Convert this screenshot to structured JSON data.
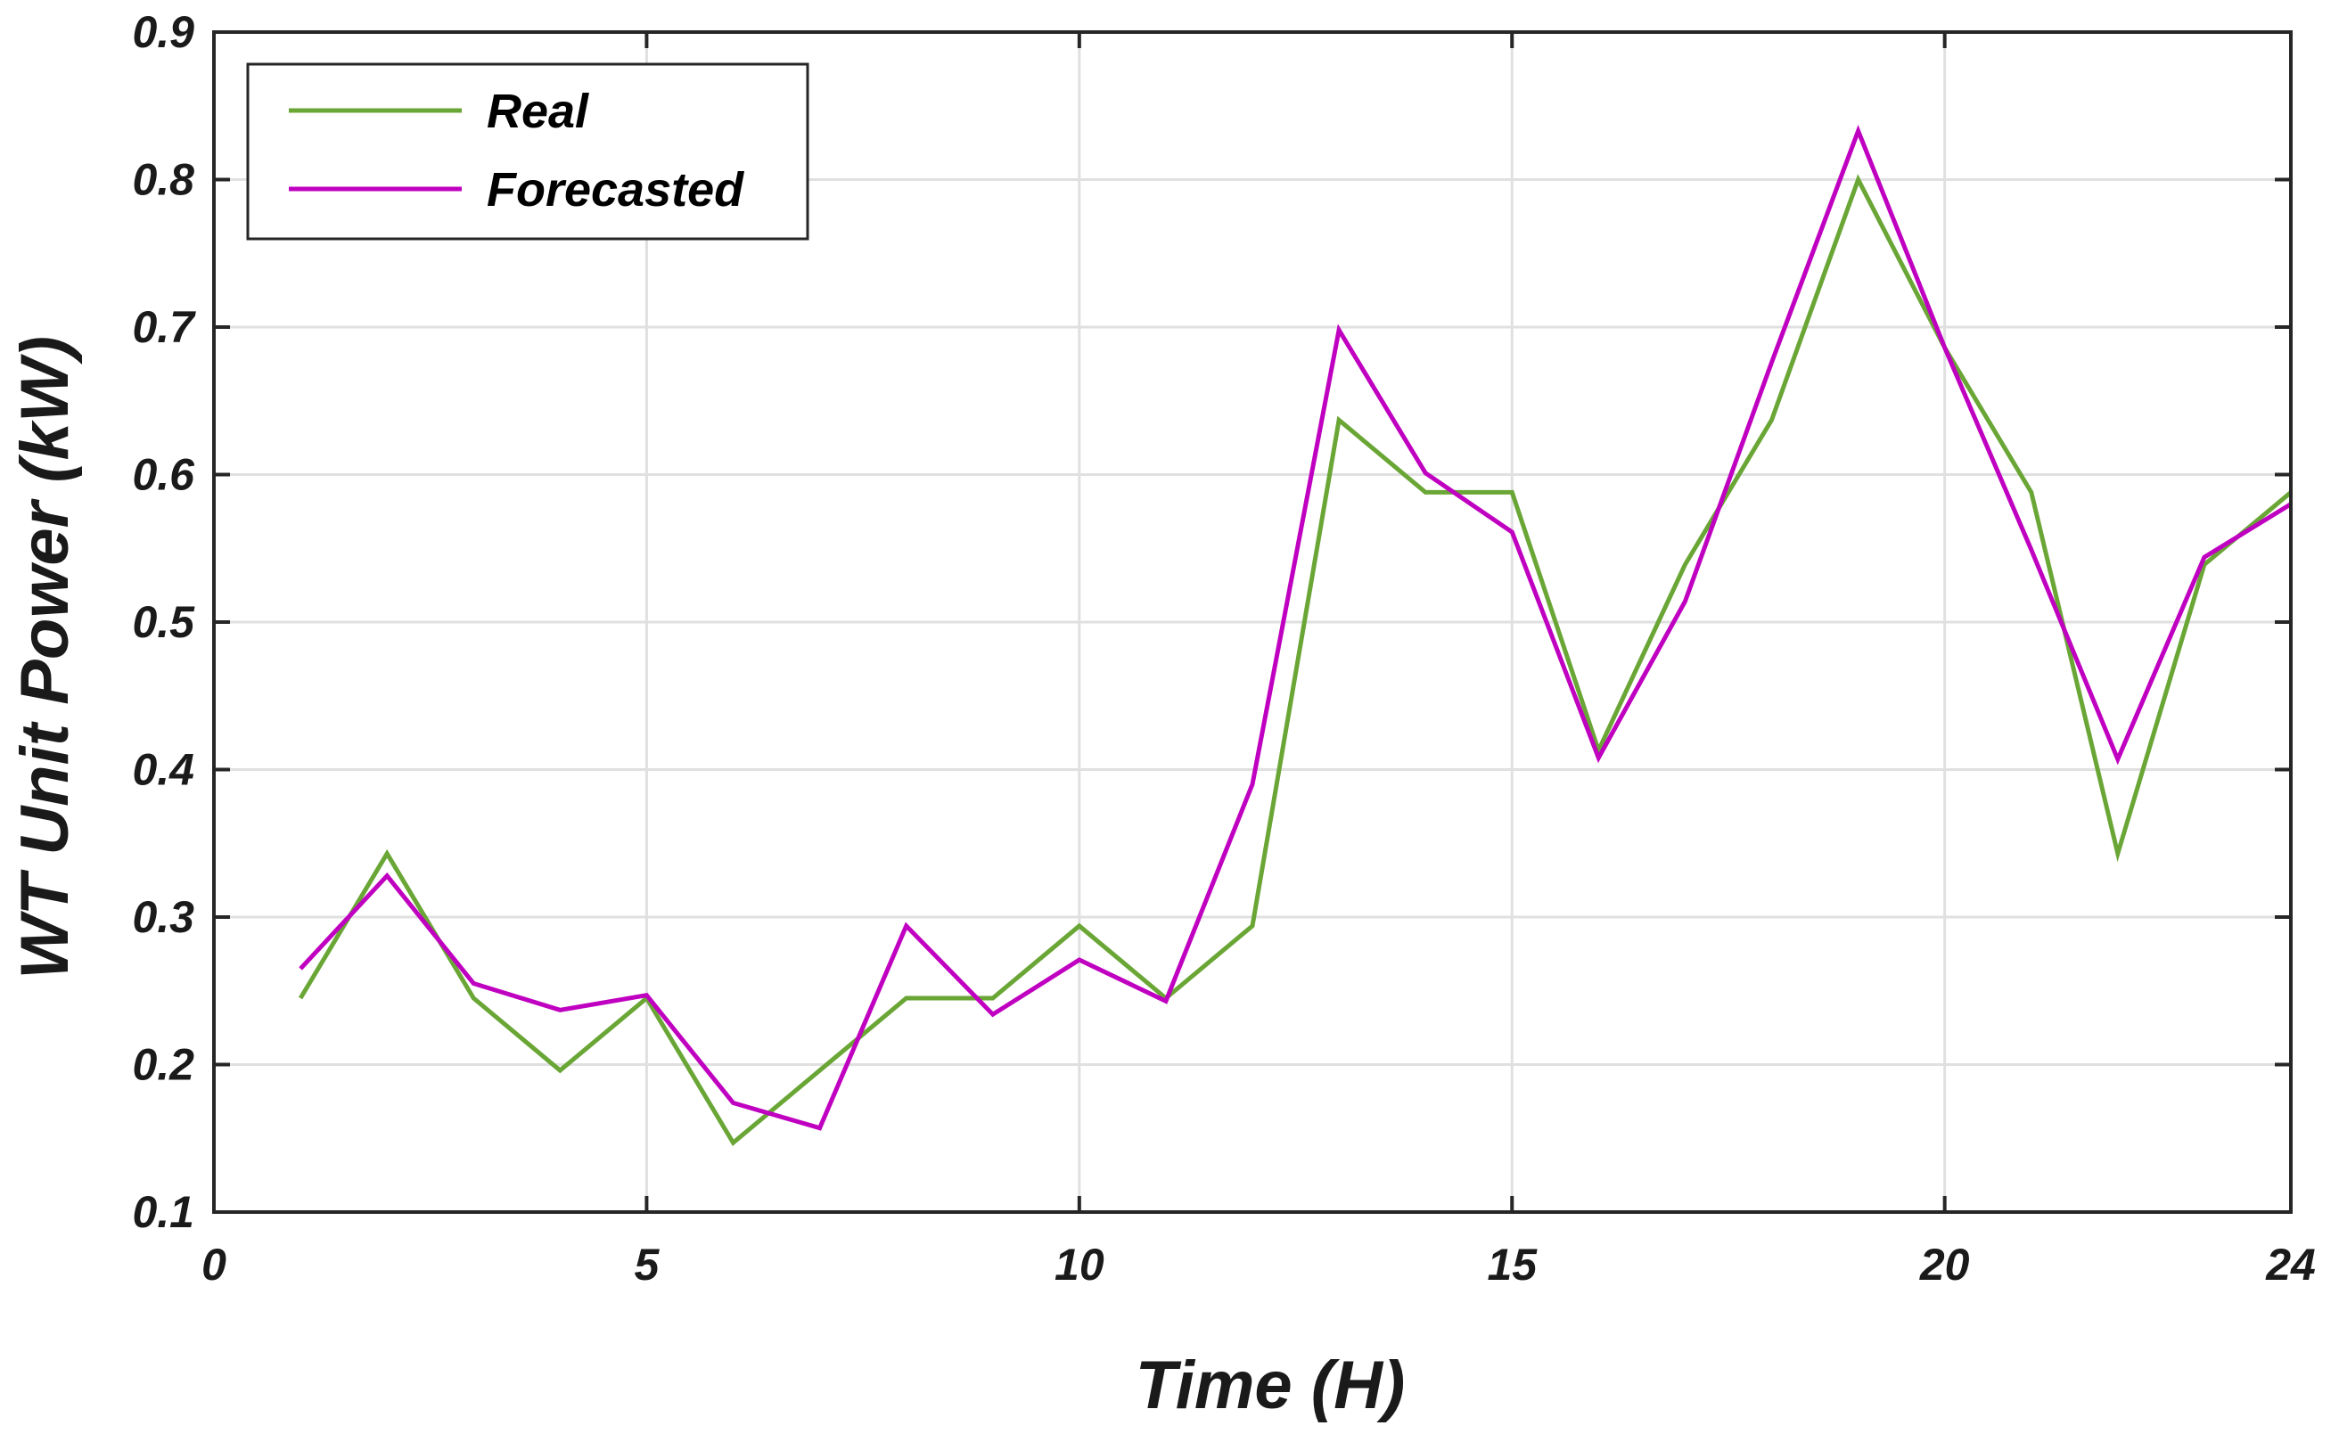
{
  "chart_data": {
    "type": "line",
    "title": "",
    "xlabel": "Time (H)",
    "ylabel": "WT Unit Power (kW)",
    "xlim": [
      0,
      24
    ],
    "ylim": [
      0.1,
      0.9
    ],
    "xticks": [
      0,
      5,
      10,
      15,
      20,
      24
    ],
    "yticks": [
      0.1,
      0.2,
      0.3,
      0.4,
      0.5,
      0.6,
      0.7,
      0.8,
      0.9
    ],
    "ytick_labels": [
      "0.1",
      "0.2",
      "0.3",
      "0.4",
      "0.5",
      "0.6",
      "0.7",
      "0.8",
      "0.9"
    ],
    "grid": true,
    "legend_position": "top-left",
    "x": [
      1,
      2,
      3,
      4,
      5,
      6,
      7,
      8,
      9,
      10,
      11,
      12,
      13,
      14,
      15,
      16,
      17,
      18,
      19,
      20,
      21,
      22,
      23,
      24
    ],
    "series": [
      {
        "name": "Real",
        "color": "#6aa636",
        "values": [
          0.245,
          0.343,
          0.245,
          0.196,
          0.245,
          0.147,
          0.196,
          0.245,
          0.245,
          0.294,
          0.245,
          0.294,
          0.637,
          0.588,
          0.588,
          0.413,
          0.539,
          0.637,
          0.8,
          0.686,
          0.588,
          0.343,
          0.539,
          0.588
        ]
      },
      {
        "name": "Forecasted",
        "color": "#c000c0",
        "values": [
          0.265,
          0.328,
          0.255,
          0.237,
          0.247,
          0.174,
          0.157,
          0.294,
          0.234,
          0.271,
          0.243,
          0.39,
          0.698,
          0.601,
          0.561,
          0.408,
          0.514,
          0.676,
          0.833,
          0.686,
          0.549,
          0.407,
          0.544,
          0.58
        ]
      }
    ]
  }
}
